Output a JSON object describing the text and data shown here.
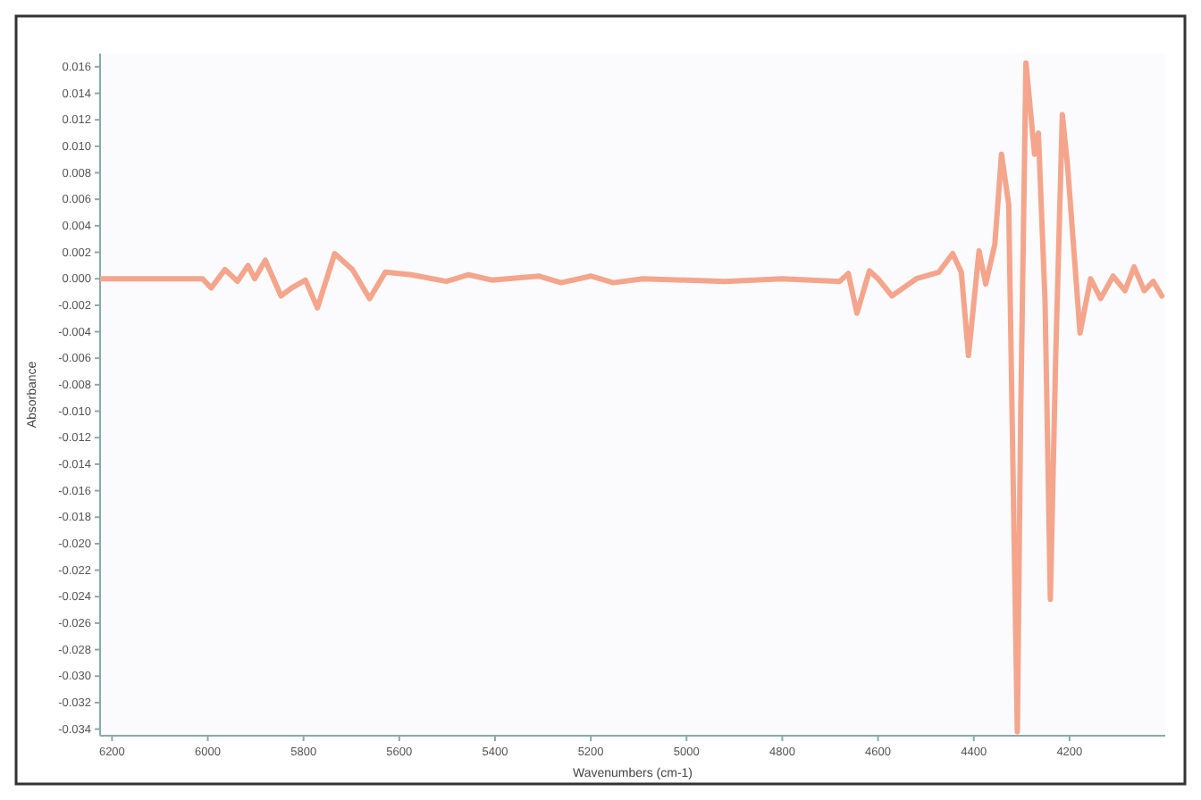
{
  "chart_data": {
    "type": "line",
    "xlabel": "Wavenumbers (cm-1)",
    "ylabel": "Absorbance",
    "xlim": [
      6225,
      4000
    ],
    "ylim": [
      -0.0345,
      0.017
    ],
    "xticks": [
      6200,
      6000,
      5800,
      5600,
      5400,
      5200,
      5000,
      4800,
      4600,
      4400,
      4200
    ],
    "yticks": [
      {
        "value": 0.016,
        "label": "0.016"
      },
      {
        "value": 0.014,
        "label": "0.014"
      },
      {
        "value": 0.012,
        "label": "0.012"
      },
      {
        "value": 0.01,
        "label": "0.010"
      },
      {
        "value": 0.008,
        "label": "0.008"
      },
      {
        "value": 0.006,
        "label": "0.006"
      },
      {
        "value": 0.004,
        "label": "0.004"
      },
      {
        "value": 0.002,
        "label": "0.002"
      },
      {
        "value": 0,
        "label": "0.000"
      },
      {
        "value": -0.002,
        "label": "-0.002"
      },
      {
        "value": -0.004,
        "label": "-0.004"
      },
      {
        "value": -0.006,
        "label": "-0.006"
      },
      {
        "value": -0.008,
        "label": "-0.008"
      },
      {
        "value": -0.01,
        "label": "-0.010"
      },
      {
        "value": -0.012,
        "label": "-0.012"
      },
      {
        "value": -0.014,
        "label": "-0.014"
      },
      {
        "value": -0.016,
        "label": "-0.016"
      },
      {
        "value": -0.018,
        "label": "-0.018"
      },
      {
        "value": -0.02,
        "label": "-0.020"
      },
      {
        "value": -0.022,
        "label": "-0.022"
      },
      {
        "value": -0.024,
        "label": "-0.024"
      },
      {
        "value": -0.026,
        "label": "-0.026"
      },
      {
        "value": -0.028,
        "label": "-0.028"
      },
      {
        "value": -0.03,
        "label": "-0.030"
      },
      {
        "value": -0.032,
        "label": "-0.032"
      },
      {
        "value": -0.034,
        "label": "-0.034"
      }
    ],
    "grid": false,
    "line_style": "solid",
    "marker": "none",
    "series": [
      {
        "color": "#f4a58c",
        "x": [
          6225,
          6100,
          6011,
          5993,
          5964,
          5938,
          5916,
          5902,
          5880,
          5847,
          5825,
          5796,
          5771,
          5735,
          5698,
          5662,
          5629,
          5575,
          5502,
          5455,
          5407,
          5309,
          5262,
          5200,
          5153,
          5091,
          4920,
          4800,
          4680,
          4662,
          4644,
          4618,
          4600,
          4571,
          4520,
          4473,
          4444,
          4426,
          4411,
          4389,
          4375,
          4356,
          4342,
          4327,
          4316,
          4309,
          4302,
          4291,
          4273,
          4265,
          4251,
          4240,
          4229,
          4215,
          4204,
          4178,
          4156,
          4135,
          4109,
          4084,
          4065,
          4044,
          4025,
          4007
        ],
        "values": [
          0,
          0,
          0,
          -0.0007,
          0.0007,
          -0.0002,
          0.001,
          0,
          0.0014,
          -0.0013,
          -0.0007,
          -0.0001,
          -0.0022,
          0.0019,
          0.0007,
          -0.0015,
          0.0005,
          0.0003,
          -0.0002,
          0.0003,
          -0.0001,
          0.0002,
          -0.0003,
          0.0002,
          -0.0003,
          0,
          -0.0002,
          0,
          -0.0002,
          0.0004,
          -0.0026,
          0.0006,
          0,
          -0.0013,
          0,
          0.0005,
          0.0019,
          0.0005,
          -0.0058,
          0.0021,
          -0.0004,
          0.0026,
          0.0094,
          0.0056,
          -0.019,
          -0.0342,
          -0.0103,
          0.0163,
          0.0094,
          0.011,
          -0.0018,
          -0.0242,
          -0.0061,
          0.0124,
          0.0085,
          -0.0041,
          0,
          -0.0015,
          0.0002,
          -0.0009,
          0.0009,
          -0.0009,
          -0.0002,
          -0.0013
        ]
      }
    ]
  }
}
